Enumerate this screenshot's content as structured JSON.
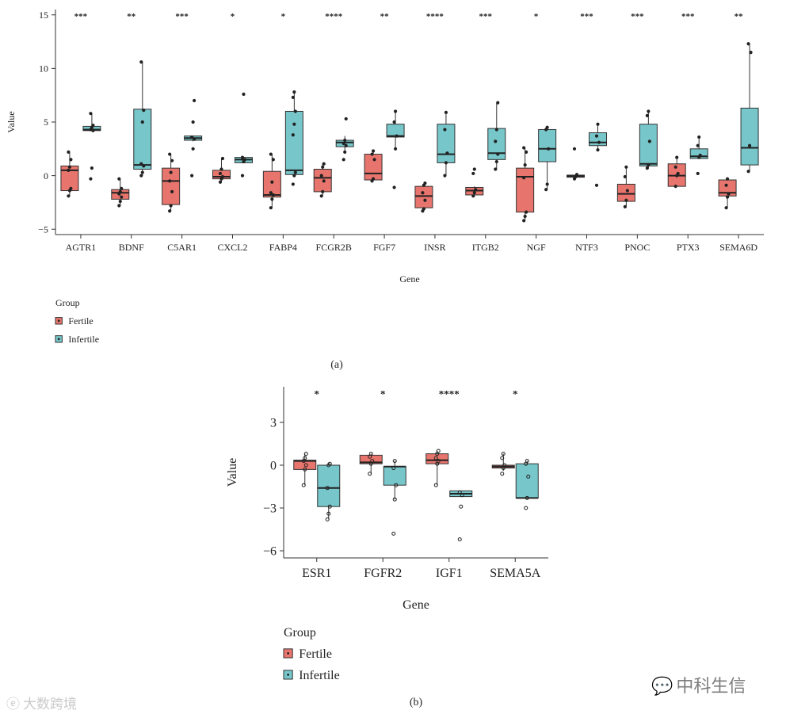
{
  "chart_data": [
    {
      "type": "boxplot",
      "panel_label": "(a)",
      "xlabel": "Gene",
      "ylabel": "Value",
      "ylim": [
        -5.5,
        15.5
      ],
      "yticks": [
        -5,
        0,
        5,
        10,
        15
      ],
      "legend": {
        "title": "Group",
        "placement": "bottom-left",
        "entries": [
          "Fertile",
          "Infertile"
        ]
      },
      "series": [
        {
          "name": "Fertile",
          "color": "#e8756d"
        },
        {
          "name": "Infertile",
          "color": "#76c6ca"
        }
      ],
      "categories": [
        "AGTR1",
        "BDNF",
        "C5AR1",
        "CXCL2",
        "FABP4",
        "FCGR2B",
        "FGF7",
        "INSR",
        "ITGB2",
        "NGF",
        "NTF3",
        "PNOC",
        "PTX3",
        "SEMA6D"
      ],
      "significance": [
        "***",
        "**",
        "***",
        "*",
        "*",
        "****",
        "**",
        "****",
        "***",
        "*",
        "***",
        "***",
        "***",
        "**"
      ],
      "boxes": [
        {
          "gene": "AGTR1",
          "fertile": {
            "min": -1.9,
            "q1": -1.4,
            "median": 0.5,
            "q3": 0.9,
            "max": 2.2,
            "points": [
              -1.9,
              -1.4,
              -1.2,
              0.5,
              0.8,
              1.5,
              2.2
            ]
          },
          "infertile": {
            "min": 4.2,
            "q1": 4.2,
            "median": 4.3,
            "q3": 4.6,
            "max": 5.8,
            "points": [
              -0.3,
              0.7,
              4.2,
              4.3,
              4.5,
              4.7,
              5.8
            ]
          }
        },
        {
          "gene": "BDNF",
          "fertile": {
            "min": -2.8,
            "q1": -2.2,
            "median": -1.6,
            "q3": -1.3,
            "max": -0.3,
            "points": [
              -2.8,
              -2.4,
              -2.0,
              -1.7,
              -1.5,
              -1.2,
              -0.3
            ]
          },
          "infertile": {
            "min": 0,
            "q1": 0.6,
            "median": 1.0,
            "q3": 6.2,
            "max": 10.6,
            "points": [
              0,
              0.3,
              0.9,
              1.1,
              5.0,
              6.1,
              10.6
            ]
          }
        },
        {
          "gene": "C5AR1",
          "fertile": {
            "min": -3.3,
            "q1": -2.7,
            "median": -0.5,
            "q3": 0.7,
            "max": 2.0,
            "points": [
              -3.3,
              -2.8,
              -1.5,
              -0.5,
              0.3,
              1.4,
              2.0
            ]
          },
          "infertile": {
            "min": 3.2,
            "q1": 3.3,
            "median": 3.5,
            "q3": 3.7,
            "max": 3.7,
            "points": [
              0,
              2.5,
              3.4,
              3.6,
              5.0,
              7.0
            ]
          }
        },
        {
          "gene": "CXCL2",
          "fertile": {
            "min": -0.6,
            "q1": -0.3,
            "median": -0.1,
            "q3": 0.5,
            "max": 1.6,
            "points": [
              -0.6,
              -0.3,
              -0.1,
              0.2,
              0.6,
              1.6
            ]
          },
          "infertile": {
            "min": 1.2,
            "q1": 1.2,
            "median": 1.5,
            "q3": 1.7,
            "max": 1.7,
            "points": [
              0,
              1.3,
              1.5,
              1.7,
              7.6
            ]
          }
        },
        {
          "gene": "FABP4",
          "fertile": {
            "min": -3.0,
            "q1": -2.0,
            "median": -1.8,
            "q3": 0.4,
            "max": 2.0,
            "points": [
              -3.0,
              -2.2,
              -1.8,
              -1.6,
              -0.6,
              1.5,
              2.0
            ]
          },
          "infertile": {
            "min": 0,
            "q1": 0.1,
            "median": 0.5,
            "q3": 6.0,
            "max": 7.8,
            "points": [
              -0.8,
              0,
              0.3,
              3.8,
              4.8,
              6.0,
              7.3,
              7.8
            ]
          }
        },
        {
          "gene": "FCGR2B",
          "fertile": {
            "min": -1.9,
            "q1": -1.5,
            "median": -0.2,
            "q3": 0.6,
            "max": 1.1,
            "points": [
              -1.9,
              -1.5,
              -0.5,
              0,
              0.8,
              1.1
            ]
          },
          "infertile": {
            "min": 2.2,
            "q1": 2.7,
            "median": 3.1,
            "q3": 3.3,
            "max": 3.7,
            "points": [
              1.5,
              2.2,
              2.8,
              3.0,
              3.3,
              5.3
            ]
          }
        },
        {
          "gene": "FGF7",
          "fertile": {
            "min": -0.4,
            "q1": -0.4,
            "median": 0.2,
            "q3": 2.0,
            "max": 2.3,
            "points": [
              -0.5,
              -0.3,
              1.5,
              2.0,
              2.3
            ]
          },
          "infertile": {
            "min": 2.5,
            "q1": 3.6,
            "median": 3.7,
            "q3": 4.8,
            "max": 6.0,
            "points": [
              -1.1,
              2.5,
              3.7,
              5.0,
              6.0
            ]
          }
        },
        {
          "gene": "INSR",
          "fertile": {
            "min": -3.3,
            "q1": -3.0,
            "median": -1.9,
            "q3": -1.0,
            "max": -0.7,
            "points": [
              -3.3,
              -3.1,
              -2.3,
              -1.6,
              -0.9,
              -0.7
            ]
          },
          "infertile": {
            "min": 0,
            "q1": 1.2,
            "median": 2.0,
            "q3": 4.8,
            "max": 6.0,
            "points": [
              0,
              1.2,
              2.1,
              4.3,
              5.9
            ]
          }
        },
        {
          "gene": "ITGB2",
          "fertile": {
            "min": -1.9,
            "q1": -1.8,
            "median": -1.4,
            "q3": -1.1,
            "max": -1.0,
            "points": [
              -1.9,
              -1.6,
              -1.3,
              0.2,
              0.6
            ]
          },
          "infertile": {
            "min": 0.6,
            "q1": 1.5,
            "median": 2.1,
            "q3": 4.4,
            "max": 6.8,
            "points": [
              0.6,
              1.3,
              2.0,
              3.2,
              4.3,
              6.8
            ]
          }
        },
        {
          "gene": "NGF",
          "fertile": {
            "min": -4.2,
            "q1": -3.4,
            "median": -0.1,
            "q3": 0.7,
            "max": 2.6,
            "points": [
              -4.2,
              -3.8,
              -3.4,
              -0.2,
              1.0,
              2.2,
              2.6
            ]
          },
          "infertile": {
            "min": -1.3,
            "q1": 1.3,
            "median": 2.5,
            "q3": 4.3,
            "max": 4.5,
            "points": [
              -1.3,
              -0.8,
              2.5,
              4.3,
              4.5
            ]
          }
        },
        {
          "gene": "NTF3",
          "fertile": {
            "min": -0.3,
            "q1": -0.15,
            "median": -0.05,
            "q3": 0.05,
            "max": 0.15,
            "points": [
              -0.3,
              -0.1,
              0.1,
              2.5
            ]
          },
          "infertile": {
            "min": 2.4,
            "q1": 2.8,
            "median": 3.1,
            "q3": 4.0,
            "max": 4.8,
            "points": [
              -0.9,
              2.4,
              3.1,
              3.7,
              4.8
            ]
          }
        },
        {
          "gene": "PNOC",
          "fertile": {
            "min": -2.9,
            "q1": -2.4,
            "median": -1.7,
            "q3": -0.8,
            "max": 0.8,
            "points": [
              -2.9,
              -2.3,
              -1.4,
              -0.1,
              0.8
            ]
          },
          "infertile": {
            "min": 0.7,
            "q1": 0.9,
            "median": 1.1,
            "q3": 4.8,
            "max": 6.0,
            "points": [
              0.7,
              1.0,
              3.2,
              5.6,
              6.0
            ]
          }
        },
        {
          "gene": "PTX3",
          "fertile": {
            "min": -1.0,
            "q1": -1.0,
            "median": 0,
            "q3": 1.1,
            "max": 1.7,
            "points": [
              -1.0,
              0,
              0.2,
              0.8,
              1.7
            ]
          },
          "infertile": {
            "min": 1.6,
            "q1": 1.6,
            "median": 1.8,
            "q3": 2.5,
            "max": 3.6,
            "points": [
              0.2,
              1.7,
              1.9,
              2.8,
              3.6
            ]
          }
        },
        {
          "gene": "SEMA6D",
          "fertile": {
            "min": -3.0,
            "q1": -1.9,
            "median": -1.6,
            "q3": -0.4,
            "max": -0.3,
            "points": [
              -3.0,
              -2.0,
              -1.7,
              -0.9,
              -0.3
            ]
          },
          "infertile": {
            "min": 0.4,
            "q1": 1.0,
            "median": 2.6,
            "q3": 6.3,
            "max": 12.3,
            "points": [
              0.4,
              2.8,
              11.5,
              12.3
            ]
          }
        }
      ]
    },
    {
      "type": "boxplot",
      "panel_label": "(b)",
      "xlabel": "Gene",
      "ylabel": "Value",
      "ylim": [
        -6.5,
        5.5
      ],
      "yticks": [
        -6,
        -3,
        0,
        3
      ],
      "legend": {
        "title": "Group",
        "placement": "bottom-left",
        "entries": [
          "Fertile",
          "Infertile"
        ]
      },
      "series": [
        {
          "name": "Fertile",
          "color": "#e8756d"
        },
        {
          "name": "Infertile",
          "color": "#76c6ca"
        }
      ],
      "categories": [
        "ESR1",
        "FGFR2",
        "IGF1",
        "SEMA5A"
      ],
      "significance": [
        "*",
        "*",
        "****",
        "*"
      ],
      "boxes": [
        {
          "gene": "ESR1",
          "fertile": {
            "min": -1.4,
            "q1": -0.3,
            "median": 0.3,
            "q3": 0.35,
            "max": 0.8,
            "points": [
              -1.4,
              -0.3,
              0,
              0.3,
              0.5,
              0.8
            ]
          },
          "infertile": {
            "min": -3.8,
            "q1": -2.9,
            "median": -1.6,
            "q3": 0,
            "max": 0.15,
            "points": [
              -3.8,
              -3.4,
              -2.9,
              -1.6,
              0,
              0.1
            ]
          }
        },
        {
          "gene": "FGFR2",
          "fertile": {
            "min": -0.6,
            "q1": 0.1,
            "median": 0.2,
            "q3": 0.7,
            "max": 0.8,
            "points": [
              -0.6,
              0.1,
              0.3,
              0.6,
              0.8
            ]
          },
          "infertile": {
            "min": -2.4,
            "q1": -1.4,
            "median": -0.1,
            "q3": -0.1,
            "max": 0.3,
            "points": [
              -4.8,
              -2.4,
              -1.4,
              -0.2,
              0.3
            ]
          }
        },
        {
          "gene": "IGF1",
          "fertile": {
            "min": -1.4,
            "q1": 0.1,
            "median": 0.35,
            "q3": 0.8,
            "max": 1.0,
            "points": [
              -1.4,
              0.1,
              0.3,
              0.5,
              0.8,
              1.0
            ]
          },
          "infertile": {
            "min": -2.2,
            "q1": -2.2,
            "median": -2.0,
            "q3": -1.8,
            "max": -1.8,
            "points": [
              -5.2,
              -2.9,
              -2.1,
              -1.9
            ]
          }
        },
        {
          "gene": "SEMA5A",
          "fertile": {
            "min": -0.4,
            "q1": -0.2,
            "median": -0.1,
            "q3": 0,
            "max": 0.8,
            "points": [
              -0.6,
              -0.2,
              0,
              0.5,
              0.8
            ]
          },
          "infertile": {
            "min": -2.3,
            "q1": -2.3,
            "median": -2.3,
            "q3": 0.1,
            "max": 0.3,
            "points": [
              -3.0,
              -2.3,
              -0.8,
              0.1,
              0.3
            ]
          }
        }
      ]
    }
  ],
  "watermarks": {
    "left_text": "大数跨境",
    "left_icon": "weibo-icon",
    "right_text": "中科生信",
    "right_icon": "wechat-icon"
  }
}
